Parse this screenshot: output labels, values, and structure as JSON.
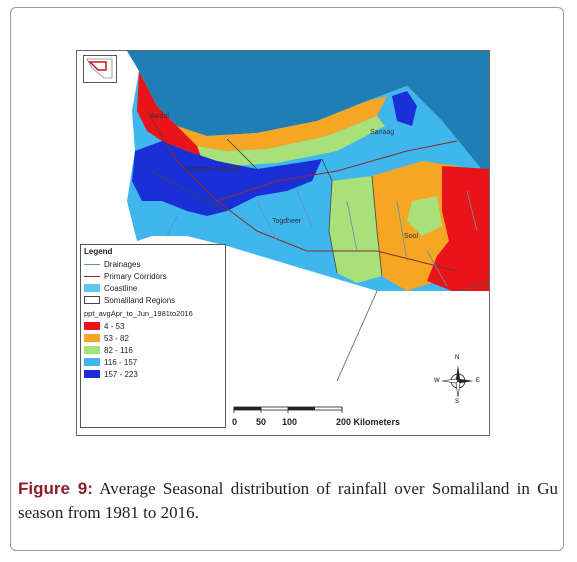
{
  "figure": {
    "label": "Figure 9:",
    "caption": "Average Seasonal distribution of rainfall over Somaliland in Gu season from 1981 to 2016."
  },
  "map": {
    "place_labels": {
      "awdal": "Awdal",
      "woqooyi_galbeed": "Woqooyi Galbeed",
      "sanaag": "Sanaag",
      "togdheer": "Togdheer",
      "sool": "Sool"
    },
    "scale_bar": {
      "ticks": [
        "0",
        "50",
        "100",
        "200 Kilometers"
      ]
    },
    "compass": {
      "n": "N",
      "s": "S",
      "e": "E",
      "w": "W"
    }
  },
  "legend": {
    "title": "Legend",
    "features": [
      {
        "label": "Drainages",
        "style": "line",
        "color": "#6a8fa8"
      },
      {
        "label": "Primary Corridors",
        "style": "line",
        "color": "#8b2c2c"
      },
      {
        "label": "Coastline",
        "style": "fill",
        "color": "#5fc8f0"
      },
      {
        "label": "Somaliland Regions",
        "style": "box",
        "color": "#444444"
      }
    ],
    "raster_title": "ppt_avgApr_to_Jun_1981to2016",
    "classes": [
      {
        "label": "4 - 53",
        "color": "#e8141a"
      },
      {
        "label": "53 - 82",
        "color": "#f5a623"
      },
      {
        "label": "82 - 116",
        "color": "#a8e07a"
      },
      {
        "label": "116 - 157",
        "color": "#3fb7ee"
      },
      {
        "label": "157 - 223",
        "color": "#1a2fd6"
      }
    ]
  }
}
